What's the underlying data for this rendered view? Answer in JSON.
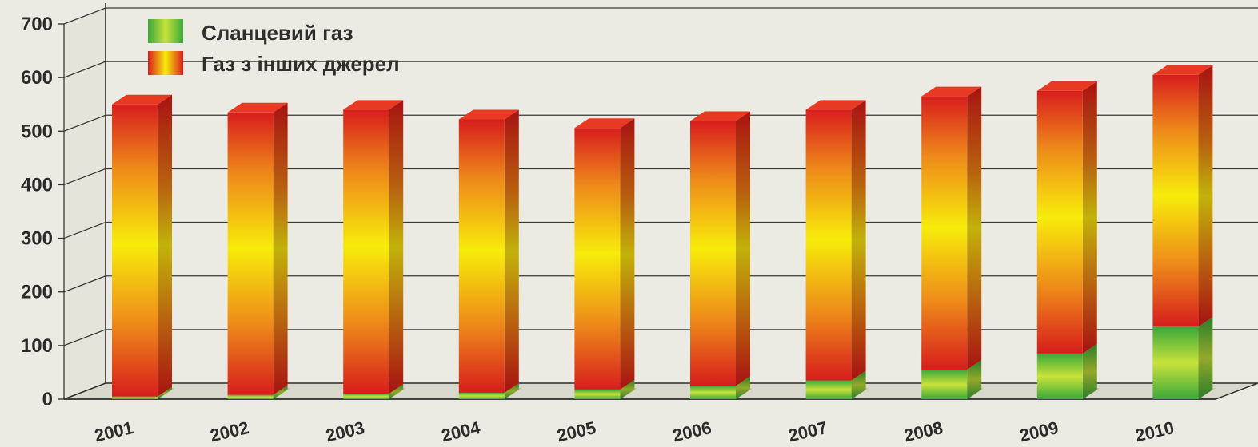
{
  "chart_data": {
    "type": "bar",
    "stacked": true,
    "three_d": true,
    "categories": [
      "2001",
      "2002",
      "2003",
      "2004",
      "2005",
      "2006",
      "2007",
      "2008",
      "2009",
      "2010"
    ],
    "series": [
      {
        "name": "Сланцевий газ",
        "values": [
          5,
          8,
          10,
          12,
          18,
          25,
          35,
          55,
          85,
          135
        ]
      },
      {
        "name": "Газ з інших джерел",
        "values": [
          545,
          527,
          530,
          510,
          488,
          494,
          505,
          510,
          490,
          470
        ]
      }
    ],
    "y_ticks": [
      "0",
      "100",
      "200",
      "300",
      "400",
      "500",
      "600",
      "700"
    ],
    "ylim": [
      0,
      700
    ],
    "grid": true,
    "legend_position": "top-left",
    "colors": {
      "shale_light": "#c8e23a",
      "shale_dark": "#3aa83a",
      "other_red": "#d81d1d",
      "other_orange": "#ee8a1a",
      "other_yellow": "#f7ec0a",
      "background": "#ecebe3"
    }
  }
}
